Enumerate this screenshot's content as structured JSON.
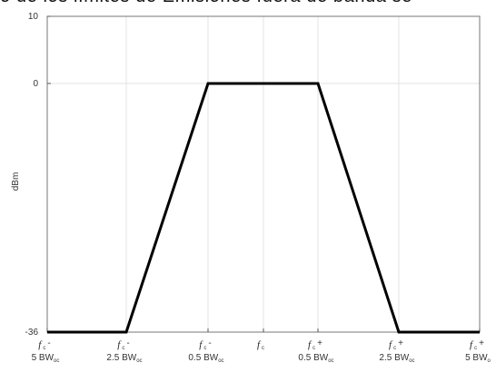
{
  "header_text": "o de los límites de Emisiones fuera de banda se",
  "chart_data": {
    "type": "line",
    "title": "",
    "xlabel": "",
    "ylabel": "dBm",
    "ylim": [
      -36,
      10
    ],
    "yticks": [
      10,
      0,
      -36
    ],
    "grid": true,
    "x_categories": [
      {
        "main": "f",
        "sub": "c",
        "sign": "-",
        "line2": "5 BW",
        "line2sub": "oc"
      },
      {
        "main": "f",
        "sub": "c",
        "sign": "-",
        "line2": "2.5 BW",
        "line2sub": "oc"
      },
      {
        "main": "f",
        "sub": "c",
        "sign": "-",
        "line2": "0.5 BW",
        "line2sub": "oc"
      },
      {
        "main": "f",
        "sub": "c",
        "sign": "",
        "line2": "",
        "line2sub": ""
      },
      {
        "main": "f",
        "sub": "c",
        "sign": "+",
        "line2": "0.5 BW",
        "line2sub": "oc"
      },
      {
        "main": "f",
        "sub": "c",
        "sign": "+",
        "line2": "2.5 BW",
        "line2sub": "oc"
      },
      {
        "main": "f",
        "sub": "c",
        "sign": "+",
        "line2": "5 BW",
        "line2sub": "o"
      }
    ],
    "series": [
      {
        "x": [
          -5,
          -2.5,
          -0.5,
          0.5,
          2.5,
          5
        ],
        "y": [
          -36,
          -36,
          0,
          0,
          -36,
          -36
        ],
        "color": "#000000"
      }
    ]
  }
}
